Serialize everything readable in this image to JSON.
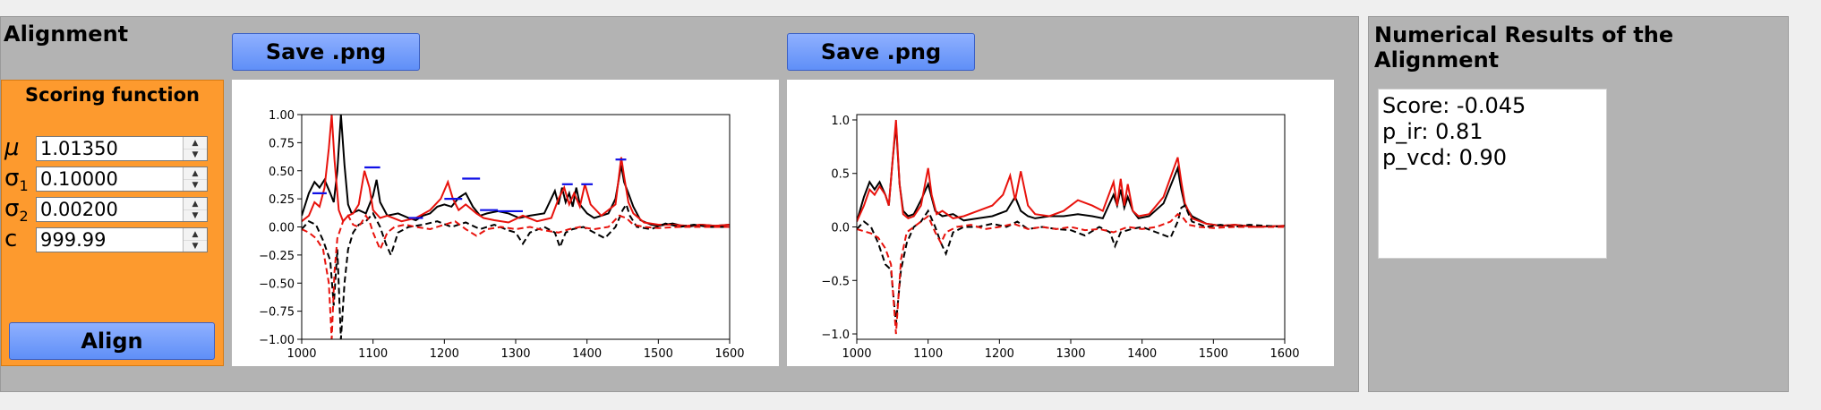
{
  "alignment_panel": {
    "title": "Alignment",
    "save_button_1": "Save .png",
    "save_button_2": "Save .png",
    "scoring": {
      "title": "Scoring function",
      "params": [
        {
          "symbol": "μ",
          "sub": "",
          "value": "1.01350"
        },
        {
          "symbol": "σ",
          "sub": "1",
          "value": "0.10000"
        },
        {
          "symbol": "σ",
          "sub": "2",
          "value": "0.00200"
        },
        {
          "symbol": "c",
          "sub": "",
          "value": "999.99"
        }
      ],
      "align_button": "Align"
    }
  },
  "results_panel": {
    "title": "Numerical Results of the Alignment",
    "lines": [
      "Score: -0.045",
      "p_ir: 0.81",
      "p_vcd: 0.90"
    ]
  },
  "colors": {
    "red": "#e8120c",
    "black": "#000000",
    "blue": "#1010e6"
  },
  "chart_data": [
    {
      "type": "line",
      "xlim": [
        1000,
        1600
      ],
      "ylim": [
        -1.0,
        1.0
      ],
      "xticks": [
        1000,
        1100,
        1200,
        1300,
        1400,
        1500,
        1600
      ],
      "yticks": [
        "1.00",
        "0.75",
        "0.50",
        "0.25",
        "0.00",
        "−0.25",
        "−0.50",
        "−0.75",
        "−1.00"
      ],
      "ytick_values": [
        1.0,
        0.75,
        0.5,
        0.25,
        0.0,
        -0.25,
        -0.5,
        -0.75,
        -1.0
      ],
      "series": [
        {
          "style": "solid",
          "color": "#000000",
          "x": [
            1000,
            1010,
            1018,
            1025,
            1032,
            1040,
            1045,
            1050,
            1055,
            1060,
            1065,
            1070,
            1080,
            1090,
            1100,
            1105,
            1110,
            1120,
            1135,
            1150,
            1160,
            1170,
            1180,
            1190,
            1200,
            1210,
            1220,
            1230,
            1240,
            1250,
            1260,
            1275,
            1290,
            1305,
            1320,
            1340,
            1355,
            1360,
            1365,
            1370,
            1375,
            1380,
            1385,
            1390,
            1400,
            1410,
            1430,
            1440,
            1448,
            1452,
            1458,
            1465,
            1475,
            1490,
            1500,
            1520,
            1540,
            1560,
            1580,
            1600
          ],
          "y": [
            0.1,
            0.3,
            0.4,
            0.35,
            0.42,
            0.3,
            0.22,
            0.5,
            1.0,
            0.55,
            0.2,
            0.12,
            0.15,
            0.12,
            0.28,
            0.42,
            0.22,
            0.1,
            0.12,
            0.08,
            0.06,
            0.1,
            0.12,
            0.18,
            0.2,
            0.18,
            0.26,
            0.3,
            0.18,
            0.1,
            0.12,
            0.14,
            0.12,
            0.08,
            0.1,
            0.12,
            0.32,
            0.2,
            0.35,
            0.22,
            0.3,
            0.18,
            0.35,
            0.2,
            0.12,
            0.08,
            0.12,
            0.25,
            0.55,
            0.4,
            0.3,
            0.18,
            0.06,
            0.02,
            0.01,
            0.03,
            0.0,
            0.02,
            0.01,
            0.02
          ]
        },
        {
          "style": "solid",
          "color": "#e8120c",
          "x": [
            1000,
            1010,
            1018,
            1025,
            1032,
            1038,
            1042,
            1046,
            1052,
            1058,
            1065,
            1072,
            1080,
            1088,
            1095,
            1100,
            1110,
            1120,
            1140,
            1160,
            1180,
            1195,
            1205,
            1212,
            1220,
            1230,
            1245,
            1255,
            1270,
            1290,
            1310,
            1330,
            1350,
            1360,
            1368,
            1375,
            1382,
            1390,
            1397,
            1405,
            1420,
            1440,
            1448,
            1452,
            1458,
            1465,
            1480,
            1500,
            1520,
            1540,
            1560,
            1580,
            1600
          ],
          "y": [
            0.05,
            0.1,
            0.22,
            0.18,
            0.35,
            0.7,
            1.0,
            0.6,
            0.15,
            0.05,
            0.1,
            0.12,
            0.2,
            0.5,
            0.35,
            0.15,
            0.08,
            0.1,
            0.05,
            0.08,
            0.15,
            0.25,
            0.4,
            0.25,
            0.15,
            0.2,
            0.12,
            0.08,
            0.06,
            0.04,
            0.1,
            0.05,
            0.08,
            0.25,
            0.35,
            0.2,
            0.3,
            0.18,
            0.38,
            0.2,
            0.1,
            0.2,
            0.62,
            0.45,
            0.22,
            0.12,
            0.04,
            0.02,
            0.02,
            0.01,
            0.02,
            0.01,
            0.02
          ]
        },
        {
          "style": "dashed",
          "color": "#000000",
          "x": [
            1000,
            1010,
            1020,
            1030,
            1040,
            1045,
            1050,
            1055,
            1060,
            1065,
            1072,
            1080,
            1090,
            1100,
            1110,
            1118,
            1125,
            1135,
            1150,
            1170,
            1190,
            1210,
            1230,
            1250,
            1270,
            1290,
            1300,
            1310,
            1320,
            1340,
            1355,
            1362,
            1370,
            1380,
            1395,
            1410,
            1425,
            1440,
            1450,
            1455,
            1460,
            1470,
            1490,
            1510,
            1530,
            1550,
            1570,
            1600
          ],
          "y": [
            -0.02,
            0.05,
            0.02,
            -0.12,
            -0.3,
            -0.7,
            -0.2,
            -1.0,
            -0.5,
            -0.2,
            -0.05,
            0.02,
            0.05,
            0.12,
            0.0,
            -0.15,
            -0.25,
            -0.05,
            0.0,
            0.02,
            0.05,
            0.0,
            0.04,
            -0.02,
            0.02,
            -0.03,
            -0.05,
            -0.15,
            -0.05,
            0.0,
            -0.05,
            -0.18,
            -0.05,
            -0.02,
            0.0,
            -0.05,
            -0.1,
            0.0,
            0.15,
            0.2,
            0.1,
            0.0,
            -0.02,
            0.03,
            0.0,
            0.02,
            0.0,
            0.0
          ]
        },
        {
          "style": "dashed",
          "color": "#e8120c",
          "x": [
            1000,
            1010,
            1020,
            1030,
            1038,
            1042,
            1046,
            1050,
            1058,
            1065,
            1072,
            1080,
            1090,
            1095,
            1100,
            1110,
            1120,
            1130,
            1145,
            1160,
            1180,
            1200,
            1215,
            1230,
            1245,
            1260,
            1280,
            1300,
            1320,
            1340,
            1360,
            1375,
            1390,
            1410,
            1430,
            1445,
            1455,
            1465,
            1480,
            1500,
            1530,
            1560,
            1600
          ],
          "y": [
            -0.02,
            -0.05,
            -0.1,
            -0.2,
            -0.5,
            -1.0,
            -0.4,
            -0.1,
            0.05,
            0.1,
            0.02,
            0.0,
            0.1,
            0.05,
            -0.05,
            -0.2,
            -0.05,
            0.0,
            0.02,
            0.0,
            -0.02,
            0.02,
            0.05,
            -0.02,
            -0.08,
            -0.02,
            0.0,
            -0.02,
            0.0,
            -0.03,
            -0.05,
            -0.02,
            0.0,
            -0.02,
            0.0,
            0.1,
            0.08,
            0.02,
            0.0,
            -0.01,
            0.0,
            0.0,
            0.0
          ]
        }
      ],
      "segments": [
        {
          "color": "#1010e6",
          "x": [
            1015,
            1035
          ],
          "y": 0.3
        },
        {
          "color": "#1010e6",
          "x": [
            1088,
            1110
          ],
          "y": 0.53
        },
        {
          "color": "#1010e6",
          "x": [
            1150,
            1170
          ],
          "y": 0.08
        },
        {
          "color": "#1010e6",
          "x": [
            1200,
            1225
          ],
          "y": 0.25
        },
        {
          "color": "#1010e6",
          "x": [
            1225,
            1250
          ],
          "y": 0.43
        },
        {
          "color": "#1010e6",
          "x": [
            1250,
            1275
          ],
          "y": 0.15
        },
        {
          "color": "#1010e6",
          "x": [
            1275,
            1310
          ],
          "y": 0.14
        },
        {
          "color": "#1010e6",
          "x": [
            1365,
            1380
          ],
          "y": 0.38
        },
        {
          "color": "#1010e6",
          "x": [
            1392,
            1408
          ],
          "y": 0.38
        },
        {
          "color": "#1010e6",
          "x": [
            1440,
            1455
          ],
          "y": 0.6
        }
      ]
    },
    {
      "type": "line",
      "xlim": [
        1000,
        1600
      ],
      "ylim": [
        -1.05,
        1.05
      ],
      "xticks": [
        1000,
        1100,
        1200,
        1300,
        1400,
        1500,
        1600
      ],
      "yticks": [
        "1.0",
        "0.5",
        "0.0",
        "−0.5",
        "−1.0"
      ],
      "ytick_values": [
        1.0,
        0.5,
        0.0,
        -0.5,
        -1.0
      ],
      "series": [
        {
          "style": "solid",
          "color": "#000000",
          "x": [
            1000,
            1010,
            1018,
            1025,
            1032,
            1040,
            1045,
            1050,
            1055,
            1060,
            1065,
            1072,
            1080,
            1090,
            1100,
            1110,
            1120,
            1135,
            1150,
            1170,
            1190,
            1210,
            1222,
            1230,
            1240,
            1250,
            1270,
            1290,
            1310,
            1330,
            1345,
            1360,
            1365,
            1370,
            1375,
            1380,
            1387,
            1395,
            1410,
            1430,
            1450,
            1455,
            1460,
            1470,
            1490,
            1510,
            1530,
            1560,
            1600
          ],
          "y": [
            0.05,
            0.28,
            0.42,
            0.35,
            0.42,
            0.3,
            0.2,
            0.6,
            0.96,
            0.4,
            0.15,
            0.1,
            0.12,
            0.25,
            0.4,
            0.15,
            0.1,
            0.12,
            0.06,
            0.08,
            0.1,
            0.15,
            0.28,
            0.15,
            0.1,
            0.08,
            0.1,
            0.1,
            0.12,
            0.1,
            0.08,
            0.3,
            0.2,
            0.35,
            0.18,
            0.28,
            0.15,
            0.08,
            0.1,
            0.22,
            0.55,
            0.35,
            0.2,
            0.1,
            0.03,
            0.01,
            0.02,
            0.0,
            0.01
          ]
        },
        {
          "style": "solid",
          "color": "#e8120c",
          "x": [
            1000,
            1010,
            1018,
            1025,
            1032,
            1040,
            1045,
            1050,
            1055,
            1060,
            1065,
            1072,
            1080,
            1090,
            1100,
            1105,
            1112,
            1120,
            1135,
            1150,
            1170,
            1190,
            1205,
            1215,
            1222,
            1230,
            1240,
            1250,
            1270,
            1290,
            1310,
            1330,
            1345,
            1360,
            1365,
            1370,
            1375,
            1380,
            1387,
            1395,
            1410,
            1430,
            1450,
            1455,
            1460,
            1470,
            1490,
            1510,
            1530,
            1560,
            1600
          ],
          "y": [
            0.05,
            0.2,
            0.35,
            0.3,
            0.38,
            0.3,
            0.2,
            0.6,
            1.0,
            0.4,
            0.12,
            0.08,
            0.1,
            0.2,
            0.55,
            0.3,
            0.12,
            0.15,
            0.08,
            0.1,
            0.15,
            0.2,
            0.3,
            0.48,
            0.25,
            0.52,
            0.2,
            0.12,
            0.1,
            0.15,
            0.25,
            0.2,
            0.15,
            0.42,
            0.2,
            0.45,
            0.2,
            0.4,
            0.15,
            0.1,
            0.12,
            0.28,
            0.65,
            0.42,
            0.22,
            0.08,
            0.03,
            0.01,
            0.02,
            0.0,
            0.01
          ]
        },
        {
          "style": "dashed",
          "color": "#000000",
          "x": [
            1000,
            1010,
            1020,
            1030,
            1040,
            1048,
            1055,
            1062,
            1070,
            1080,
            1090,
            1100,
            1110,
            1118,
            1125,
            1135,
            1150,
            1170,
            1190,
            1210,
            1225,
            1240,
            1260,
            1280,
            1300,
            1320,
            1340,
            1355,
            1362,
            1370,
            1385,
            1400,
            1420,
            1440,
            1450,
            1455,
            1460,
            1470,
            1490,
            1510,
            1530,
            1550,
            1600
          ],
          "y": [
            -0.02,
            0.05,
            0.0,
            -0.15,
            -0.35,
            -0.4,
            -0.9,
            -0.4,
            -0.15,
            0.0,
            0.05,
            0.15,
            0.0,
            -0.15,
            -0.25,
            -0.05,
            0.0,
            0.0,
            0.03,
            0.0,
            0.05,
            -0.02,
            0.0,
            -0.02,
            -0.03,
            -0.08,
            0.0,
            -0.05,
            -0.18,
            -0.05,
            -0.02,
            0.0,
            -0.05,
            -0.1,
            0.05,
            0.18,
            0.2,
            0.05,
            0.0,
            0.02,
            0.0,
            0.02,
            0.0
          ]
        },
        {
          "style": "dashed",
          "color": "#e8120c",
          "x": [
            1000,
            1010,
            1020,
            1030,
            1040,
            1048,
            1055,
            1062,
            1070,
            1080,
            1090,
            1100,
            1110,
            1118,
            1125,
            1140,
            1160,
            1180,
            1200,
            1220,
            1240,
            1260,
            1280,
            1300,
            1320,
            1340,
            1360,
            1380,
            1400,
            1420,
            1440,
            1450,
            1458,
            1465,
            1480,
            1500,
            1530,
            1560,
            1600
          ],
          "y": [
            -0.02,
            -0.04,
            -0.06,
            -0.1,
            -0.2,
            -0.35,
            -1.0,
            -0.3,
            -0.05,
            0.0,
            0.05,
            0.1,
            -0.05,
            -0.15,
            -0.05,
            0.0,
            0.02,
            -0.02,
            0.0,
            0.03,
            -0.02,
            0.0,
            -0.02,
            0.0,
            -0.03,
            -0.02,
            -0.05,
            0.0,
            -0.02,
            0.0,
            0.05,
            0.12,
            0.08,
            0.02,
            0.0,
            -0.01,
            0.0,
            0.0,
            0.0
          ]
        }
      ],
      "segments": []
    }
  ]
}
